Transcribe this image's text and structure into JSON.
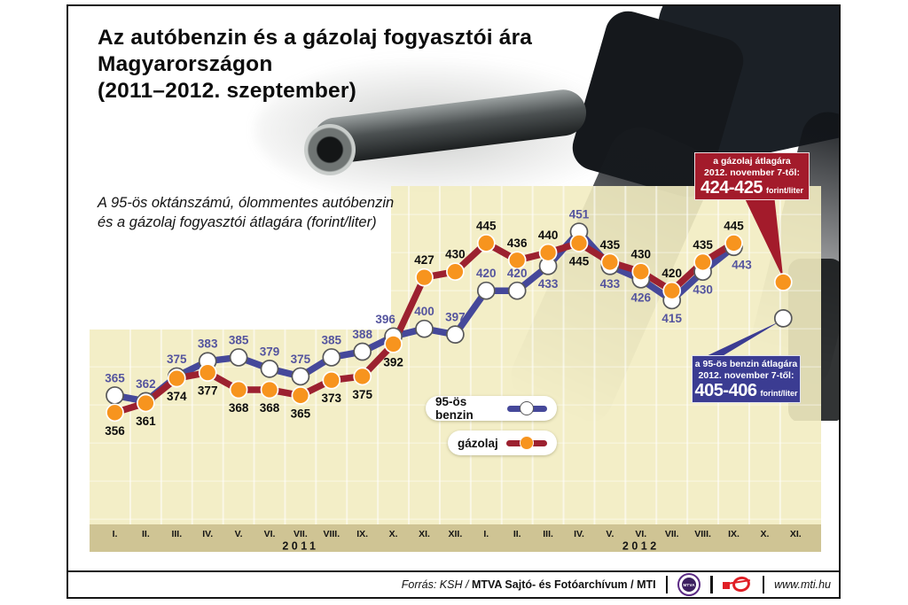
{
  "title": {
    "line1": "Az autóbenzin és a gázolaj fogyasztói ára",
    "line2": "Magyarországon",
    "line3": "(2011–2012. szeptember)"
  },
  "subtitle": {
    "line1": "A 95-ös oktánszámú, ólommentes autóbenzin",
    "line2": "és a gázolaj fogyasztói átlagára (forint/liter)"
  },
  "legend": {
    "benzin_label": "95-ös benzin",
    "gazolaj_label": "gázolaj"
  },
  "callouts": {
    "gazolaj": {
      "line1": "a gázolaj átlagára",
      "line2": "2012. november 7-től:",
      "value": "424-425",
      "unit": "forint/liter",
      "box_color": "#a31b2b"
    },
    "benzin": {
      "line1": "a 95-ös benzin átlagára",
      "line2": "2012. november 7-től:",
      "value": "405-406",
      "unit": "forint/liter",
      "box_color": "#3b3c92"
    }
  },
  "footer": {
    "source_prefix": "Forrás: KSH / ",
    "source_bold": "MTVA Sajtó- és Fotóarchívum / MTI",
    "mtva_logo_text": "MTVA",
    "website": "www.mti.hu"
  },
  "chart_data": {
    "type": "line",
    "unit": "forint/liter",
    "x_groups": [
      {
        "year": "2011",
        "months": [
          "I.",
          "II.",
          "III.",
          "IV.",
          "V.",
          "VI.",
          "VII.",
          "VIII.",
          "IX.",
          "X.",
          "XI.",
          "XII."
        ]
      },
      {
        "year": "2012",
        "months": [
          "I.",
          "II.",
          "III.",
          "IV.",
          "V.",
          "VI.",
          "VII.",
          "VIII.",
          "IX.",
          "X.",
          "XI."
        ]
      }
    ],
    "ylim": [
      297,
      478
    ],
    "grid": true,
    "series": [
      {
        "name": "95-ös benzin",
        "color": "#45489a",
        "marker_fill": "#ffffff",
        "marker_stroke": "#58585a",
        "label_color": "#54549e",
        "values": [
          365,
          362,
          375,
          383,
          385,
          379,
          375,
          385,
          388,
          396,
          400,
          397,
          420,
          420,
          433,
          451,
          433,
          426,
          415,
          430,
          443
        ],
        "label_pos": [
          "a",
          "a",
          "a",
          "a",
          "a",
          "a",
          "a",
          "a",
          "a",
          "a",
          "a",
          "a",
          "a",
          "a",
          "b",
          "a",
          "b",
          "b",
          "b",
          "b",
          "b"
        ],
        "label_dx": {
          "9": -9,
          "20": 9
        }
      },
      {
        "name": "gázolaj",
        "color": "#9c2130",
        "marker_fill": "#f7941e",
        "marker_stroke": "#ffffff",
        "label_color": "#0d0d0d",
        "values": [
          356,
          361,
          374,
          377,
          368,
          368,
          365,
          373,
          375,
          392,
          427,
          430,
          445,
          436,
          440,
          445,
          435,
          430,
          420,
          435,
          445
        ],
        "label_pos": [
          "b",
          "b",
          "b",
          "b",
          "b",
          "b",
          "b",
          "b",
          "b",
          "b",
          "a",
          "a",
          "a",
          "a",
          "a",
          "b",
          "a",
          "a",
          "a",
          "a",
          "a"
        ],
        "label_dx": {}
      }
    ],
    "forecast_points": [
      {
        "series": "gázolaj",
        "month_index": 22,
        "value": 424.5,
        "note": "424-425 forint/liter, 2012. november 7-től"
      },
      {
        "series": "95-ös benzin",
        "month_index": 22,
        "value": 405.5,
        "note": "405-406 forint/liter, 2012. november 7-től"
      }
    ],
    "style": {
      "panel_bg": "rgba(242,236,193,0.9)",
      "axis_band_bg": "#cfc494",
      "gridline": "rgba(255,255,255,0.55)"
    }
  }
}
